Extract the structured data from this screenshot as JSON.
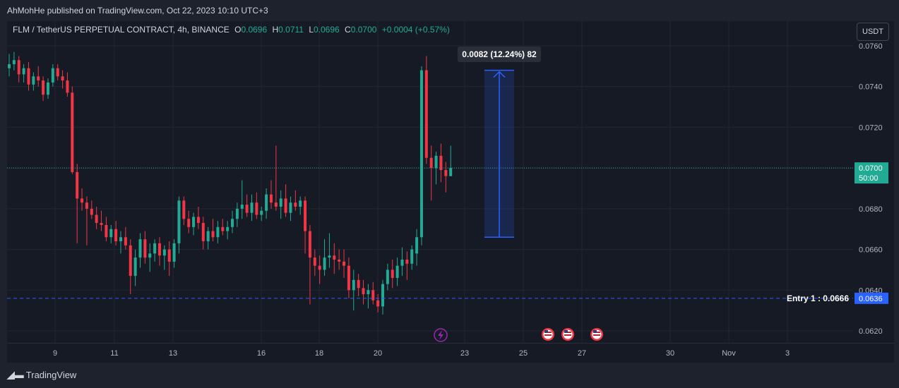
{
  "header": {
    "published": "AhMohHe published on TradingView.com, Oct 22, 2023 10:10 UTC+3"
  },
  "legend": {
    "symbol": "FLM / TetherUS PERPETUAL CONTRACT, 4h, BINANCE",
    "o_label": "O",
    "o_value": "0.0696",
    "h_label": "H",
    "h_value": "0.0711",
    "l_label": "L",
    "l_value": "0.0696",
    "c_label": "C",
    "c_value": "0.0700",
    "change": "+0.0004 (+0.57%)"
  },
  "currency_button": "USDT",
  "footer": {
    "brand": "TradingView"
  },
  "chart_data": {
    "type": "candlestick",
    "ylim": [
      0.061,
      0.0765
    ],
    "y_ticks": [
      "0.0760",
      "0.0740",
      "0.0720",
      "0.0700",
      "0.0680",
      "0.0660",
      "0.0640",
      "0.0620"
    ],
    "x_ticks": [
      "9",
      "11",
      "13",
      "16",
      "18",
      "20",
      "23",
      "25",
      "27",
      "30",
      "Nov",
      "3"
    ],
    "current_price": "0.0700",
    "countdown": "50:00",
    "entry_label": "Entry 1 : 0.0666",
    "entry_line_value": 0.0636,
    "entry_line_label": "0.0636",
    "measure": {
      "from": 0.0666,
      "to": 0.0748,
      "label": "0.0082 (12.24%) 82"
    },
    "colors": {
      "up": "#22ab94",
      "down": "#f23645",
      "measure": "#2962ff"
    },
    "candles": [
      [
        0.0749,
        0.0756,
        0.0745,
        0.0751
      ],
      [
        0.0751,
        0.0757,
        0.0748,
        0.0753
      ],
      [
        0.0753,
        0.0755,
        0.0742,
        0.0746
      ],
      [
        0.0746,
        0.0751,
        0.0742,
        0.0749
      ],
      [
        0.0749,
        0.0752,
        0.0738,
        0.0741
      ],
      [
        0.0741,
        0.0747,
        0.0738,
        0.0745
      ],
      [
        0.0745,
        0.075,
        0.074,
        0.0743
      ],
      [
        0.0743,
        0.0745,
        0.0733,
        0.0736
      ],
      [
        0.0736,
        0.0744,
        0.0734,
        0.0742
      ],
      [
        0.0742,
        0.0751,
        0.074,
        0.0749
      ],
      [
        0.0749,
        0.0751,
        0.0743,
        0.0745
      ],
      [
        0.0745,
        0.0748,
        0.0739,
        0.0743
      ],
      [
        0.0743,
        0.0747,
        0.0735,
        0.0737
      ],
      [
        0.0737,
        0.074,
        0.0697,
        0.0698
      ],
      [
        0.0698,
        0.0702,
        0.0663,
        0.0685
      ],
      [
        0.0685,
        0.069,
        0.0679,
        0.0683
      ],
      [
        0.0683,
        0.0686,
        0.0662,
        0.068
      ],
      [
        0.068,
        0.0684,
        0.0675,
        0.0677
      ],
      [
        0.0677,
        0.0681,
        0.067,
        0.0673
      ],
      [
        0.0673,
        0.0679,
        0.0669,
        0.0672
      ],
      [
        0.0672,
        0.0676,
        0.0664,
        0.0666
      ],
      [
        0.0666,
        0.0672,
        0.0663,
        0.067
      ],
      [
        0.067,
        0.0674,
        0.0662,
        0.0664
      ],
      [
        0.0664,
        0.0669,
        0.0658,
        0.0666
      ],
      [
        0.0666,
        0.0671,
        0.066,
        0.0662
      ],
      [
        0.0662,
        0.0665,
        0.0638,
        0.0647
      ],
      [
        0.0647,
        0.066,
        0.0642,
        0.0656
      ],
      [
        0.0656,
        0.0668,
        0.0651,
        0.0665
      ],
      [
        0.0665,
        0.0669,
        0.0653,
        0.0656
      ],
      [
        0.0656,
        0.0663,
        0.0649,
        0.0658
      ],
      [
        0.0658,
        0.0665,
        0.0654,
        0.0663
      ],
      [
        0.0663,
        0.0666,
        0.0652,
        0.0657
      ],
      [
        0.0657,
        0.0662,
        0.065,
        0.066
      ],
      [
        0.066,
        0.0664,
        0.0647,
        0.0654
      ],
      [
        0.0654,
        0.0665,
        0.0651,
        0.0663
      ],
      [
        0.0663,
        0.0686,
        0.0658,
        0.0684
      ],
      [
        0.0684,
        0.0686,
        0.0672,
        0.0675
      ],
      [
        0.0675,
        0.0679,
        0.0668,
        0.0671
      ],
      [
        0.0671,
        0.0678,
        0.0667,
        0.0676
      ],
      [
        0.0676,
        0.0681,
        0.067,
        0.0673
      ],
      [
        0.0673,
        0.0676,
        0.066,
        0.0664
      ],
      [
        0.0664,
        0.0671,
        0.066,
        0.0669
      ],
      [
        0.0669,
        0.0675,
        0.0664,
        0.0666
      ],
      [
        0.0666,
        0.0674,
        0.0663,
        0.0671
      ],
      [
        0.0671,
        0.0675,
        0.0667,
        0.0669
      ],
      [
        0.0669,
        0.0674,
        0.0665,
        0.0671
      ],
      [
        0.0671,
        0.0679,
        0.0668,
        0.0675
      ],
      [
        0.0675,
        0.0683,
        0.0671,
        0.068
      ],
      [
        0.068,
        0.0694,
        0.0675,
        0.0682
      ],
      [
        0.0682,
        0.0687,
        0.0676,
        0.0678
      ],
      [
        0.0678,
        0.0687,
        0.0674,
        0.0683
      ],
      [
        0.0683,
        0.0688,
        0.0675,
        0.0677
      ],
      [
        0.0677,
        0.0681,
        0.0674,
        0.0679
      ],
      [
        0.0679,
        0.069,
        0.0675,
        0.0687
      ],
      [
        0.0687,
        0.0694,
        0.068,
        0.0683
      ],
      [
        0.0683,
        0.0711,
        0.0679,
        0.0681
      ],
      [
        0.0681,
        0.0689,
        0.0675,
        0.0685
      ],
      [
        0.0685,
        0.0692,
        0.0676,
        0.0678
      ],
      [
        0.0678,
        0.0686,
        0.0674,
        0.0683
      ],
      [
        0.0683,
        0.0689,
        0.0679,
        0.0681
      ],
      [
        0.0681,
        0.0686,
        0.0677,
        0.0684
      ],
      [
        0.0684,
        0.0686,
        0.0658,
        0.0669
      ],
      [
        0.0669,
        0.0672,
        0.0633,
        0.0656
      ],
      [
        0.0656,
        0.066,
        0.0647,
        0.0652
      ],
      [
        0.0652,
        0.0657,
        0.0643,
        0.065
      ],
      [
        0.065,
        0.0665,
        0.0647,
        0.0656
      ],
      [
        0.0656,
        0.0668,
        0.0651,
        0.0657
      ],
      [
        0.0657,
        0.0663,
        0.0648,
        0.0655
      ],
      [
        0.0655,
        0.066,
        0.065,
        0.0654
      ],
      [
        0.0654,
        0.066,
        0.0646,
        0.0652
      ],
      [
        0.0652,
        0.0656,
        0.0636,
        0.064
      ],
      [
        0.064,
        0.065,
        0.063,
        0.0645
      ],
      [
        0.0645,
        0.0648,
        0.0637,
        0.0641
      ],
      [
        0.0641,
        0.0645,
        0.0633,
        0.0638
      ],
      [
        0.0638,
        0.0643,
        0.0631,
        0.064
      ],
      [
        0.064,
        0.0644,
        0.0633,
        0.0635
      ],
      [
        0.0635,
        0.0638,
        0.0629,
        0.0632
      ],
      [
        0.0632,
        0.0645,
        0.0628,
        0.0643
      ],
      [
        0.0643,
        0.0653,
        0.064,
        0.065
      ],
      [
        0.065,
        0.0655,
        0.0641,
        0.0646
      ],
      [
        0.0646,
        0.0656,
        0.0642,
        0.0652
      ],
      [
        0.0652,
        0.0661,
        0.0647,
        0.0655
      ],
      [
        0.0655,
        0.0659,
        0.0645,
        0.0653
      ],
      [
        0.0653,
        0.0662,
        0.065,
        0.066
      ],
      [
        0.0658,
        0.067,
        0.0652,
        0.0666
      ],
      [
        0.0666,
        0.075,
        0.0662,
        0.0748
      ],
      [
        0.0748,
        0.0755,
        0.0702,
        0.0705
      ],
      [
        0.0705,
        0.0711,
        0.0684,
        0.07
      ],
      [
        0.07,
        0.0708,
        0.0692,
        0.0706
      ],
      [
        0.0706,
        0.0712,
        0.0693,
        0.0699
      ],
      [
        0.0699,
        0.0703,
        0.0688,
        0.0696
      ],
      [
        0.0696,
        0.0711,
        0.0696,
        0.07
      ]
    ]
  }
}
